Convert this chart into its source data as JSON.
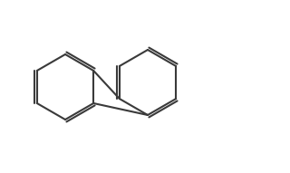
{
  "bg": "#ffffff",
  "line_color": "#3a3a3a",
  "lw": 1.5,
  "font_size": 9,
  "font_color": "#3a3a3a"
}
